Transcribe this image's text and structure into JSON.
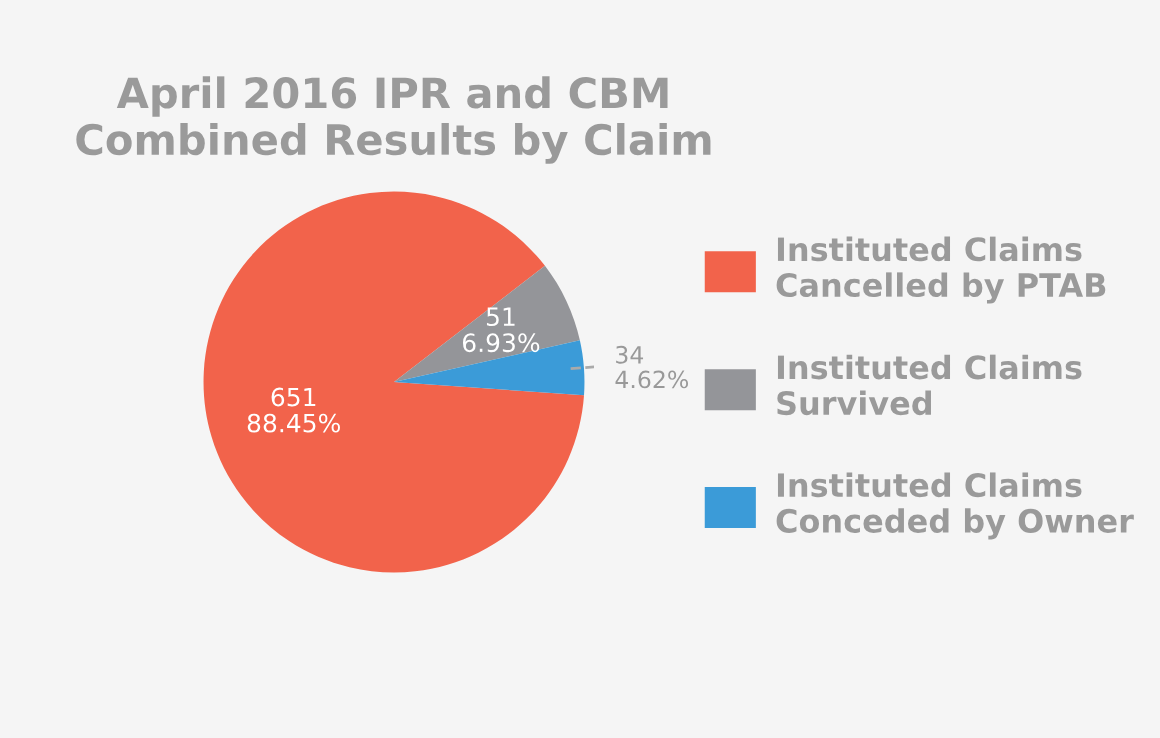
{
  "chart_data": {
    "type": "pie",
    "title": "April 2016 IPR and CBM\nCombined Results by Claim",
    "categories": [
      "Instituted Claims\nCancelled by PTAB",
      "Instituted Claims\nSurvived",
      "Instituted Claims\nConceded by Owner"
    ],
    "values": [
      651,
      51,
      34
    ],
    "colors": [
      "#f2634b",
      "#949599",
      "#3b9bd8"
    ],
    "value_labels": [
      "651\n88.45%",
      "51\n6.93%",
      "34\n4.62%"
    ],
    "legend": "right"
  }
}
